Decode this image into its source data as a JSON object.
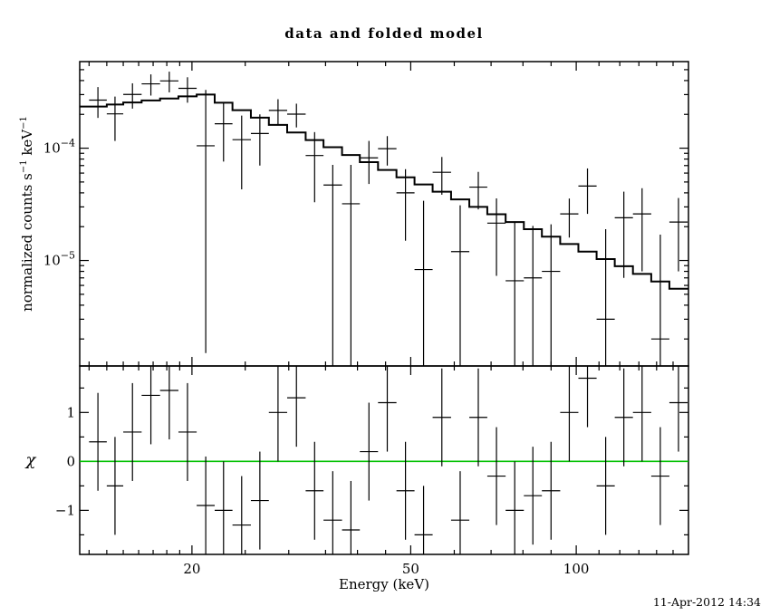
{
  "title": "data and folded model",
  "labels": {
    "y_top_pre": "normalized counts s",
    "y_top_sup1": "−1",
    "y_top_mid": " keV",
    "y_top_sup2": "−1",
    "y_bottom": "χ",
    "x": "Energy (keV)"
  },
  "timestamp": "11-Apr-2012 14:34",
  "colors": {
    "foreground": "#000000",
    "background": "#ffffff",
    "zero_line": "#00c000"
  },
  "chart_data": {
    "type": "scatter",
    "subtype": "xspec-data-and-folded-model",
    "title": "data and folded model",
    "x_axis": {
      "label": "Energy (keV)",
      "scale": "log",
      "range": [
        12.5,
        160
      ],
      "major_ticks": [
        {
          "value": 20,
          "label": "20"
        },
        {
          "value": 50,
          "label": "50"
        },
        {
          "value": 100,
          "label": "100"
        }
      ],
      "minor_ticks": [
        13,
        14,
        15,
        16,
        17,
        18,
        19,
        25,
        30,
        35,
        40,
        45,
        60,
        70,
        80,
        90,
        110,
        120,
        130,
        140,
        150
      ]
    },
    "top_panel": {
      "y_label": "normalized counts s^-1 keV^-1",
      "y_scale": "log",
      "y_range": [
        1.15e-06,
        0.00059
      ],
      "y_major_ticks": [
        {
          "value": 0.0001,
          "mantissa": "10",
          "exponent": "−4"
        },
        {
          "value": 1e-05,
          "mantissa": "10",
          "exponent": "−5"
        }
      ],
      "model_bin_edges": [
        13,
        14,
        15,
        16.2,
        17.5,
        18.9,
        20.4,
        22,
        23.7,
        25.6,
        27.6,
        29.8,
        32.2,
        34.7,
        37.5,
        40.4,
        43.6,
        47.1,
        50.8,
        54.8,
        59.2,
        63.9,
        68.9,
        74.4,
        80.3,
        86.6,
        93.5,
        100.9,
        108.9,
        117.5,
        126.8,
        136.9,
        147.7,
        159.4
      ],
      "model_values": [
        0.000235,
        0.000245,
        0.000255,
        0.000266,
        0.000277,
        0.000289,
        0.0003,
        0.000254,
        0.000218,
        0.000187,
        0.000161,
        0.000138,
        0.000118,
        0.000102,
        8.7e-05,
        7.5e-05,
        6.4e-05,
        5.5e-05,
        4.75e-05,
        4.1e-05,
        3.5e-05,
        3e-05,
        2.58e-05,
        2.2e-05,
        1.9e-05,
        1.63e-05,
        1.4e-05,
        1.2e-05,
        1.03e-05,
        8.9e-06,
        7.6e-06,
        6.5e-06,
        5.6e-06
      ],
      "points": {
        "x": [
          13.49,
          14.49,
          15.59,
          16.84,
          18.19,
          19.63,
          21.19,
          22.83,
          24.63,
          26.58,
          28.68,
          30.98,
          33.43,
          36.07,
          38.92,
          41.97,
          45.32,
          48.91,
          52.76,
          56.96,
          61.5,
          66.35,
          71.6,
          77.29,
          83.39,
          89.98,
          97.13,
          104.82,
          113.12,
          122.06,
          131.75,
          142.2,
          153.44
        ],
        "y": [
          0.000268,
          0.000202,
          0.000301,
          0.000374,
          0.000397,
          0.000341,
          0.000105,
          0.000165,
          0.000119,
          0.000135,
          0.000217,
          0.000201,
          8.6e-05,
          4.7e-05,
          3.2e-05,
          8.2e-05,
          9.9e-05,
          4e-05,
          8.3e-06,
          6.1e-05,
          1.2e-05,
          4.5e-05,
          2.15e-05,
          6.6e-06,
          7e-06,
          8e-06,
          2.6e-05,
          4.6e-05,
          3e-06,
          2.4e-05,
          2.6e-05,
          2e-06,
          2.2e-05
        ],
        "ylo": [
          0.000186,
          0.000116,
          0.000225,
          0.000294,
          0.000314,
          0.000254,
          1.5e-06,
          7.6e-05,
          4.3e-05,
          7e-05,
          0.000161,
          0.000153,
          3.3e-05,
          1e-06,
          1e-06,
          4.8e-05,
          7e-05,
          1.5e-05,
          1e-06,
          3.85e-05,
          1e-06,
          2.85e-05,
          7.3e-06,
          1e-06,
          1e-06,
          1e-06,
          1.6e-05,
          2.6e-05,
          1e-06,
          7e-06,
          8e-06,
          1e-06,
          8e-06
        ],
        "yhi": [
          0.00035,
          0.000288,
          0.000378,
          0.000454,
          0.00048,
          0.000428,
          0.00033,
          0.000254,
          0.000195,
          0.0002,
          0.000273,
          0.000249,
          0.000139,
          7.1e-05,
          7.1e-05,
          0.000116,
          0.000128,
          6.5e-05,
          3.4e-05,
          8.35e-05,
          3.1e-05,
          6.15e-05,
          3.57e-05,
          2.2e-05,
          2.03e-05,
          2.1e-05,
          3.56e-05,
          6.6e-05,
          1.9e-05,
          4.1e-05,
          4.4e-05,
          1.7e-05,
          3.6e-05
        ]
      }
    },
    "bottom_panel": {
      "y_label": "χ",
      "y_scale": "linear",
      "y_range": [
        -1.9,
        1.95
      ],
      "y_major_ticks": [
        {
          "value": -1,
          "label": "−1"
        },
        {
          "value": 0,
          "label": "0"
        },
        {
          "value": 1,
          "label": "1"
        }
      ],
      "y_minor_ticks": [
        -1.5,
        -0.5,
        0.5,
        1.5
      ],
      "zero_line_value": 0,
      "chi": [
        0.4,
        -0.5,
        0.6,
        1.35,
        1.45,
        0.6,
        -0.9,
        -1.0,
        -1.3,
        -0.8,
        1.0,
        1.3,
        -0.6,
        -1.2,
        -1.4,
        0.2,
        1.2,
        -0.6,
        -1.5,
        0.9,
        -1.2,
        0.9,
        -0.3,
        -1.0,
        -0.7,
        -0.6,
        1.0,
        1.7,
        -0.5,
        0.9,
        1.0,
        -0.3,
        1.2
      ],
      "chi_error": 1.0
    }
  }
}
